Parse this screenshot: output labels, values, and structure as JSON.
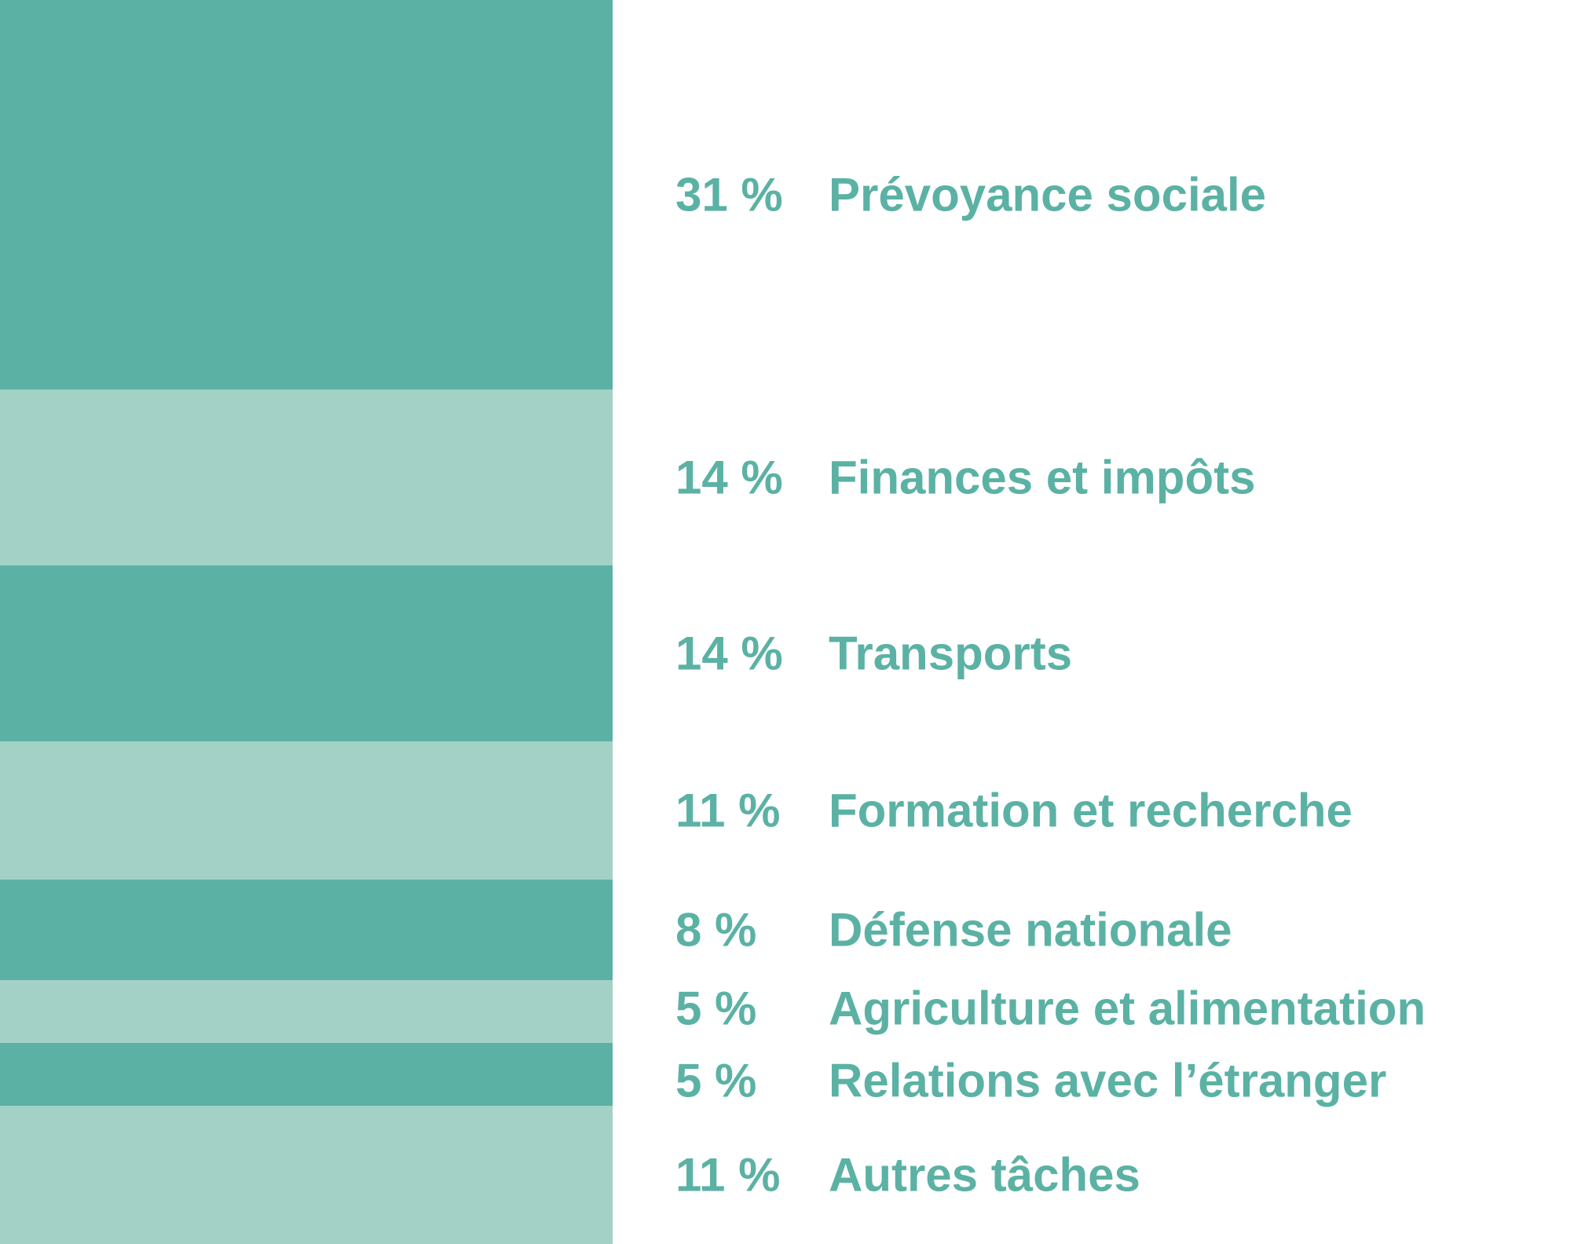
{
  "chart_data": {
    "type": "bar",
    "orientation": "stacked-vertical",
    "categories": [
      "Prévoyance sociale",
      "Finances et impôts",
      "Transports",
      "Formation et recherche",
      "Défense nationale",
      "Agriculture et alimentation",
      "Relations avec l’étranger",
      "Autres tâches"
    ],
    "values": [
      31,
      14,
      14,
      11,
      8,
      5,
      5,
      11
    ],
    "value_labels": [
      "31 %",
      "14 %",
      "14 %",
      "11 %",
      "8 %",
      "5 %",
      "5 %",
      "11 %"
    ],
    "colors": {
      "dark": "#5bb2a4",
      "light": "#a4d1c6",
      "text": "#5bb2a4"
    },
    "legend": "none",
    "grid": false
  }
}
